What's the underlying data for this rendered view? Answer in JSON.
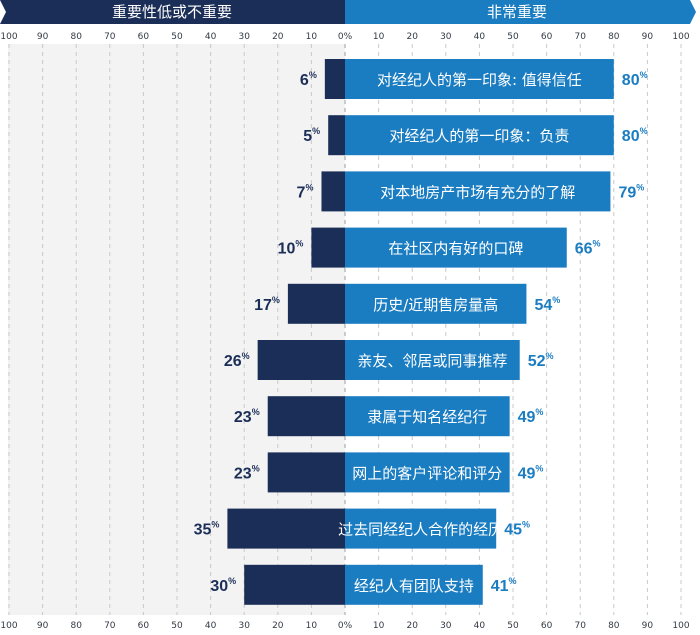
{
  "header": {
    "left_label": "重要性低或不重要",
    "right_label": "非常重要"
  },
  "chart_data": {
    "type": "bar",
    "orientation": "horizontal-diverging",
    "x_ticks_left": [
      "100",
      "90",
      "80",
      "70",
      "60",
      "50",
      "40",
      "30",
      "20",
      "10",
      "0%"
    ],
    "x_ticks_right": [
      "10",
      "20",
      "30",
      "40",
      "50",
      "60",
      "70",
      "80",
      "90",
      "100"
    ],
    "xlim_left": [
      100,
      0
    ],
    "xlim_right": [
      0,
      100
    ],
    "grid": true,
    "categories": [
      "对经纪人的第一印象: 值得信任",
      "对经纪人的第一印象：负责",
      "对本地房产市场有充分的了解",
      "在社区内有好的口碑",
      "历史/近期售房量高",
      "亲友、邻居或同事推荐",
      "隶属于知名经纪行",
      "网上的客户评论和评分",
      "过去同经纪人合作的经历",
      "经纪人有团队支持"
    ],
    "series": [
      {
        "values": [
          6,
          5,
          7,
          10,
          17,
          26,
          23,
          23,
          35,
          30
        ],
        "color": "#1b2e57"
      },
      {
        "values": [
          80,
          80,
          79,
          66,
          54,
          52,
          49,
          49,
          45,
          41
        ],
        "color": "#1a7cc1"
      }
    ],
    "value_suffix": "%"
  }
}
